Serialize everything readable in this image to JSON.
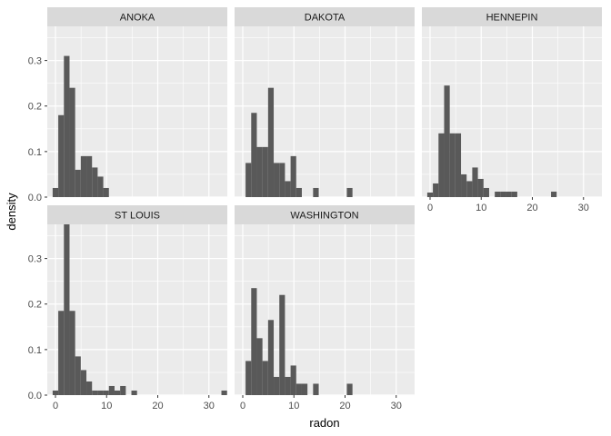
{
  "chart_data": {
    "type": "bar",
    "subtype": "faceted-histogram",
    "xlabel": "radon",
    "ylabel": "density",
    "xlim": [
      -1.6,
      33.6
    ],
    "ylim": [
      0,
      0.375
    ],
    "x_ticks": [
      0,
      10,
      20,
      30
    ],
    "y_ticks": [
      0.0,
      0.1,
      0.2,
      0.3
    ],
    "y_tick_labels": [
      "0.0",
      "0.1",
      "0.2",
      "0.3"
    ],
    "bin_width": 1.1,
    "grid": true,
    "colors": {
      "bar": "#595959",
      "panel": "#ebebeb",
      "strip": "#d9d9d9",
      "grid": "#ffffff"
    },
    "panels": [
      {
        "label": "ANOKA",
        "bins": [
          {
            "x": 0.0,
            "y": 0.02
          },
          {
            "x": 1.1,
            "y": 0.18
          },
          {
            "x": 2.2,
            "y": 0.31
          },
          {
            "x": 3.3,
            "y": 0.24
          },
          {
            "x": 4.4,
            "y": 0.06
          },
          {
            "x": 5.5,
            "y": 0.09
          },
          {
            "x": 6.6,
            "y": 0.09
          },
          {
            "x": 7.7,
            "y": 0.065
          },
          {
            "x": 8.8,
            "y": 0.045
          },
          {
            "x": 9.9,
            "y": 0.02
          }
        ]
      },
      {
        "label": "DAKOTA",
        "bins": [
          {
            "x": 1.1,
            "y": 0.075
          },
          {
            "x": 2.2,
            "y": 0.185
          },
          {
            "x": 3.3,
            "y": 0.11
          },
          {
            "x": 4.4,
            "y": 0.11
          },
          {
            "x": 5.5,
            "y": 0.24
          },
          {
            "x": 6.6,
            "y": 0.075
          },
          {
            "x": 7.7,
            "y": 0.075
          },
          {
            "x": 8.8,
            "y": 0.035
          },
          {
            "x": 9.9,
            "y": 0.09
          },
          {
            "x": 11.0,
            "y": 0.02
          },
          {
            "x": 14.3,
            "y": 0.02
          },
          {
            "x": 20.9,
            "y": 0.02
          }
        ]
      },
      {
        "label": "HENNEPIN",
        "bins": [
          {
            "x": 0.0,
            "y": 0.01
          },
          {
            "x": 1.1,
            "y": 0.03
          },
          {
            "x": 2.2,
            "y": 0.14
          },
          {
            "x": 3.3,
            "y": 0.245
          },
          {
            "x": 4.4,
            "y": 0.14
          },
          {
            "x": 5.5,
            "y": 0.14
          },
          {
            "x": 6.6,
            "y": 0.05
          },
          {
            "x": 7.7,
            "y": 0.035
          },
          {
            "x": 8.8,
            "y": 0.065
          },
          {
            "x": 9.9,
            "y": 0.04
          },
          {
            "x": 11.0,
            "y": 0.02
          },
          {
            "x": 13.2,
            "y": 0.012
          },
          {
            "x": 14.3,
            "y": 0.012
          },
          {
            "x": 15.4,
            "y": 0.012
          },
          {
            "x": 16.5,
            "y": 0.012
          },
          {
            "x": 24.2,
            "y": 0.012
          }
        ]
      },
      {
        "label": "ST LOUIS",
        "bins": [
          {
            "x": 0.0,
            "y": 0.01
          },
          {
            "x": 1.1,
            "y": 0.185
          },
          {
            "x": 2.2,
            "y": 0.375
          },
          {
            "x": 3.3,
            "y": 0.185
          },
          {
            "x": 4.4,
            "y": 0.085
          },
          {
            "x": 5.5,
            "y": 0.055
          },
          {
            "x": 6.6,
            "y": 0.03
          },
          {
            "x": 7.7,
            "y": 0.01
          },
          {
            "x": 8.8,
            "y": 0.01
          },
          {
            "x": 9.9,
            "y": 0.01
          },
          {
            "x": 11.0,
            "y": 0.02
          },
          {
            "x": 12.1,
            "y": 0.01
          },
          {
            "x": 13.2,
            "y": 0.02
          },
          {
            "x": 15.4,
            "y": 0.01
          },
          {
            "x": 33.0,
            "y": 0.01
          }
        ]
      },
      {
        "label": "WASHINGTON",
        "bins": [
          {
            "x": 1.1,
            "y": 0.075
          },
          {
            "x": 2.2,
            "y": 0.235
          },
          {
            "x": 3.3,
            "y": 0.125
          },
          {
            "x": 4.4,
            "y": 0.075
          },
          {
            "x": 5.5,
            "y": 0.165
          },
          {
            "x": 6.6,
            "y": 0.04
          },
          {
            "x": 7.7,
            "y": 0.22
          },
          {
            "x": 8.8,
            "y": 0.04
          },
          {
            "x": 9.9,
            "y": 0.065
          },
          {
            "x": 11.0,
            "y": 0.025
          },
          {
            "x": 12.1,
            "y": 0.025
          },
          {
            "x": 14.3,
            "y": 0.025
          },
          {
            "x": 20.9,
            "y": 0.025
          }
        ]
      }
    ]
  }
}
